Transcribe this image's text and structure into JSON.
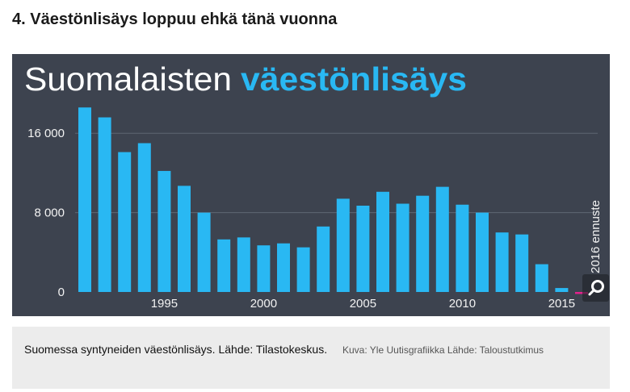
{
  "heading": "4. Väestönlisäys loppuu ehkä tänä vuonna",
  "chart_data": {
    "type": "bar",
    "title": {
      "light": "Suomalaisten",
      "highlight": "väestönlisäys"
    },
    "x": [
      1991,
      1992,
      1993,
      1994,
      1995,
      1996,
      1997,
      1998,
      1999,
      2000,
      2001,
      2002,
      2003,
      2004,
      2005,
      2006,
      2007,
      2008,
      2009,
      2010,
      2011,
      2012,
      2013,
      2014,
      2015,
      2016
    ],
    "values": [
      18600,
      17600,
      14100,
      15000,
      12200,
      10700,
      8000,
      5300,
      5500,
      4700,
      4900,
      4500,
      6600,
      9400,
      8700,
      10100,
      8900,
      9700,
      10600,
      8800,
      8000,
      6000,
      5800,
      2800,
      400,
      -200
    ],
    "forecast_years": [
      2016
    ],
    "xticks": [
      1995,
      2000,
      2005,
      2010,
      2015
    ],
    "yticks": [
      {
        "value": 16000,
        "label": "16 000"
      },
      {
        "value": 8000,
        "label": "8 000"
      },
      {
        "value": 0,
        "label": "0"
      }
    ],
    "ylim": [
      0,
      20000
    ],
    "grid": true,
    "annotations": [
      {
        "x": 2016,
        "text": "2016 ennuste"
      }
    ],
    "colors": {
      "panel": "#3d434f",
      "bar": "#29b8f3",
      "forecast": "#e6218d",
      "highlight": "#29b8f3",
      "grid": "#5f6672"
    }
  },
  "zoom_button": {
    "icon": "zoom-icon"
  },
  "caption": {
    "text": "Suomessa syntyneiden väestönlisäys. Lähde: Tilastokeskus.",
    "credit": "Kuva: Yle Uutisgrafiikka Lähde: Taloustutkimus"
  }
}
